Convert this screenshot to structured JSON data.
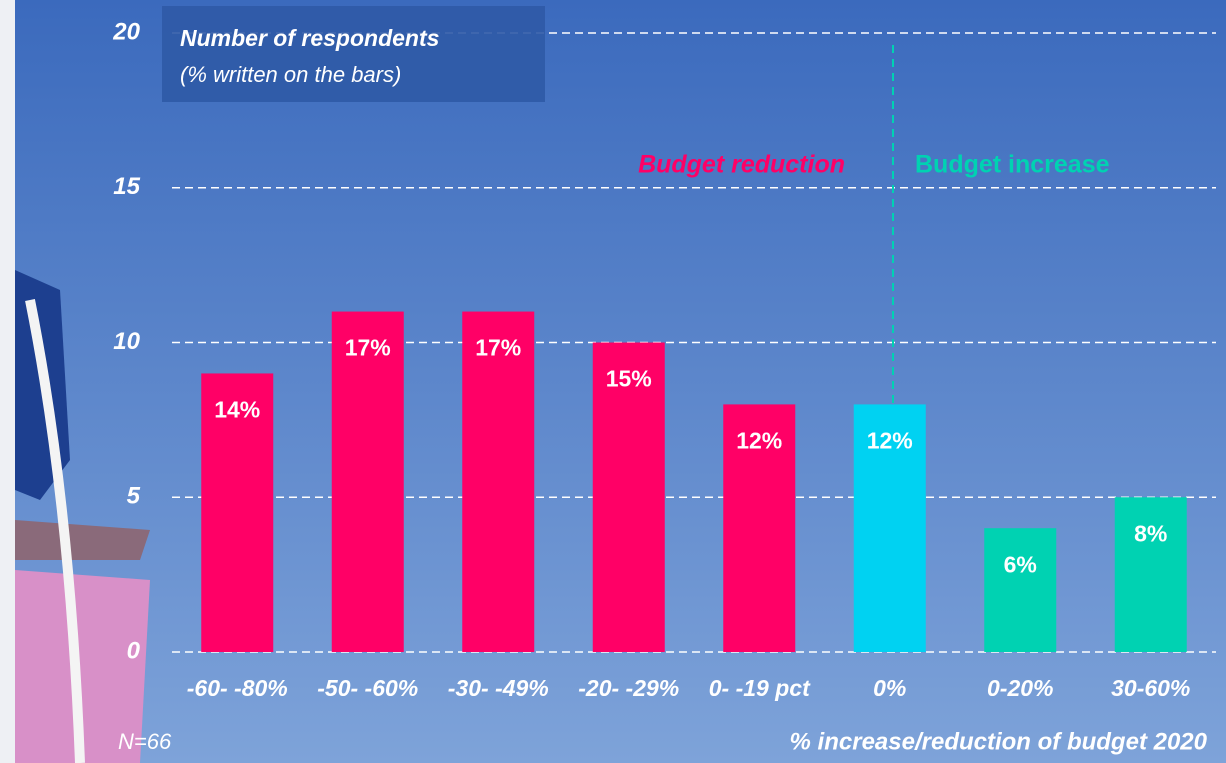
{
  "chart_data": {
    "type": "bar",
    "title": "Number of  respondents",
    "subtitle": "(% written on the bars)",
    "categories": [
      "-60- -80%",
      "-50- -60%",
      "-30- -49%",
      "-20- -29%",
      "0- -19 pct",
      "0%",
      "0-20%",
      "30-60%"
    ],
    "values": [
      9,
      11,
      11,
      10,
      8,
      8,
      4,
      5
    ],
    "percent_labels": [
      "14%",
      "17%",
      "17%",
      "15%",
      "12%",
      "12%",
      "6%",
      "8%"
    ],
    "colors": [
      "#ff0066",
      "#ff0066",
      "#ff0066",
      "#ff0066",
      "#ff0066",
      "#00d2f2",
      "#00d2b2",
      "#00d2b2"
    ],
    "ylim": [
      0,
      20
    ],
    "yticks": [
      0,
      5,
      10,
      15,
      20
    ],
    "grid": true,
    "annotations": [
      "Budget reduction",
      "Budget increase"
    ],
    "note": "N=66",
    "x_label": "% increase/reduction of budget 2020"
  }
}
